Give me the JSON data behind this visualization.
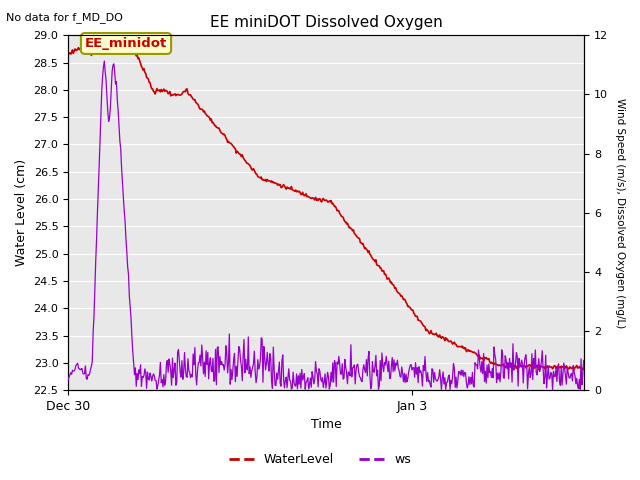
{
  "title": "EE miniDOT Dissolved Oxygen",
  "top_left_text": "No data for f_MD_DO",
  "annotation_text": "EE_minidot",
  "xlabel": "Time",
  "ylabel_left": "Water Level (cm)",
  "ylabel_right": "Wind Speed (m/s), Dissolved Oxygen (mg/L)",
  "ylim_left": [
    22.5,
    29.0
  ],
  "ylim_right": [
    0,
    12
  ],
  "yticks_left": [
    22.5,
    23.0,
    23.5,
    24.0,
    24.5,
    25.0,
    25.5,
    26.0,
    26.5,
    27.0,
    27.5,
    28.0,
    28.5,
    29.0
  ],
  "yticks_right": [
    0,
    2,
    4,
    6,
    8,
    10,
    12
  ],
  "xtick_positions": [
    0,
    72
  ],
  "xtick_labels": [
    "Dec 30",
    "Jan 3"
  ],
  "xlim": [
    0,
    108
  ],
  "background_color": "#ffffff",
  "plot_bg_color": "#e8e8e8",
  "water_color": "#cc0000",
  "ws_color": "#9900cc",
  "legend_items": [
    "WaterLevel",
    "ws"
  ],
  "legend_colors": [
    "#cc0000",
    "#9900cc"
  ],
  "grid_color": "#ffffff",
  "title_fontsize": 11,
  "label_fontsize": 9,
  "tick_fontsize": 8
}
